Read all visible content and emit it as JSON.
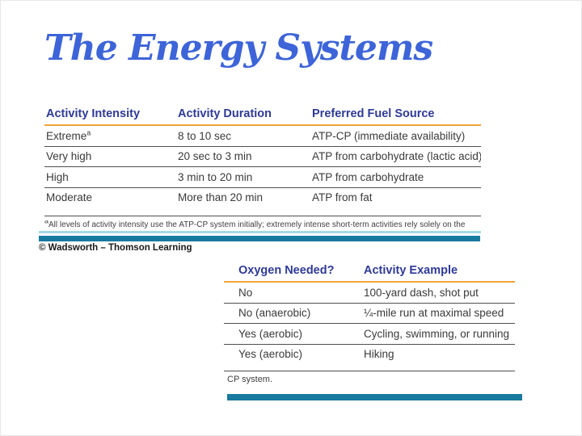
{
  "title": "The Energy Systems",
  "colors": {
    "title_blue": "#3d64d8",
    "header_navy": "#2e3a96",
    "accent_orange": "#f0a43c",
    "teal_bar": "#187a9f",
    "cyan_line": "#a5d8e6"
  },
  "table1": {
    "headers": [
      "Activity Intensity",
      "Activity Duration",
      "Preferred Fuel Source"
    ],
    "footnote_marker": "a",
    "rows": [
      [
        "Extreme",
        "8 to 10 sec",
        "ATP-CP (immediate availability)"
      ],
      [
        "Very high",
        "20 sec to 3 min",
        "ATP from carbohydrate (lactic acid)"
      ],
      [
        "High",
        "3 min to 20 min",
        "ATP from carbohydrate"
      ],
      [
        "Moderate",
        "More than 20 min",
        "ATP from fat"
      ]
    ],
    "footnote": "All levels of activity intensity use the ATP-CP system initially; extremely intense short-term activities rely solely on the"
  },
  "credit": "© Wadsworth – Thomson Learning",
  "table2": {
    "headers": [
      "Oxygen Needed?",
      "Activity Example"
    ],
    "rows": [
      [
        "No",
        "100-yard dash, shot put"
      ],
      [
        "No (anaerobic)",
        "¼-mile run at maximal speed"
      ],
      [
        "Yes (aerobic)",
        "Cycling, swimming, or running"
      ],
      [
        "Yes (aerobic)",
        "Hiking"
      ]
    ],
    "footnote_continuation": "CP system."
  }
}
